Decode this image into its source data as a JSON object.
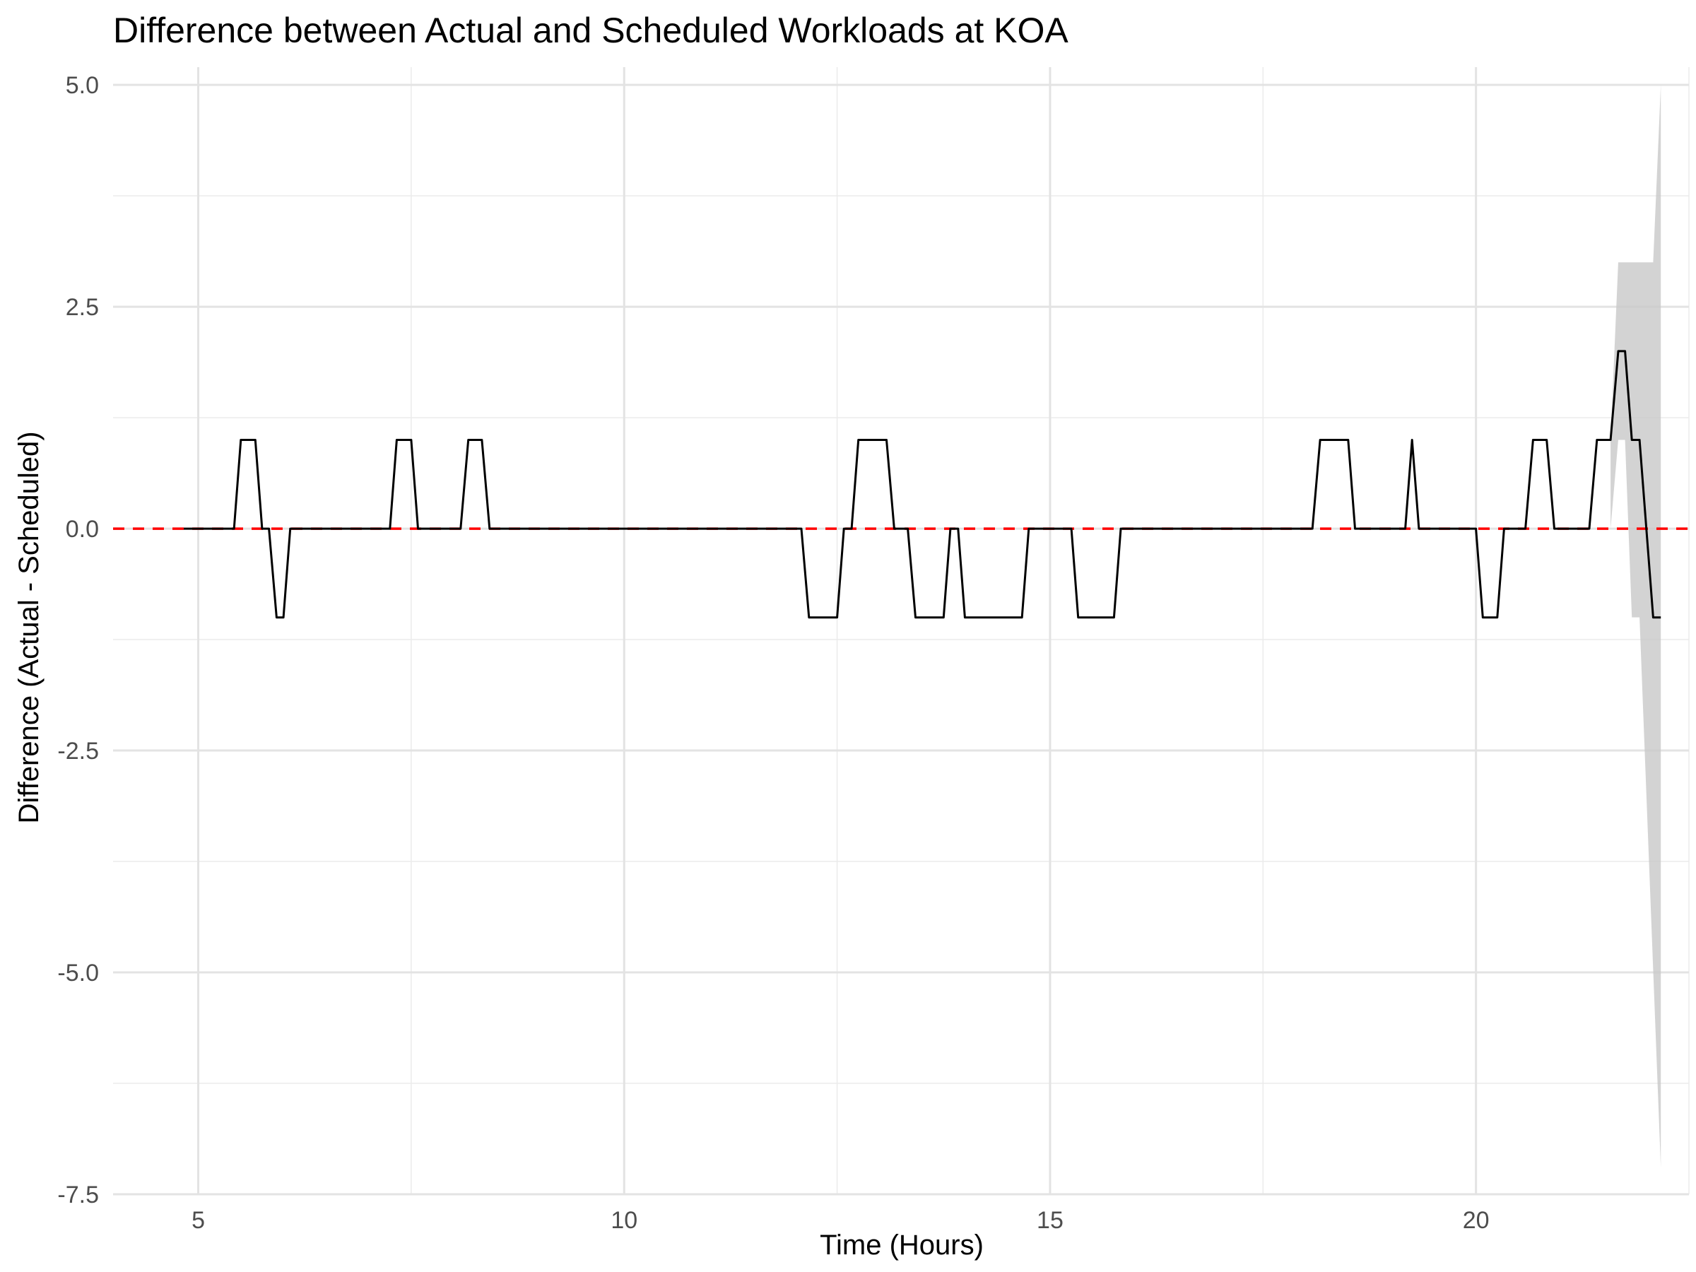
{
  "chart_data": {
    "type": "line",
    "title": "Difference between Actual and Scheduled Workloads at KOA",
    "xlabel": "Time (Hours)",
    "ylabel": "Difference (Actual - Scheduled)",
    "xlim": [
      4.0,
      22.5
    ],
    "ylim": [
      -7.5,
      5.2
    ],
    "x_ticks": [
      5,
      10,
      15,
      20
    ],
    "x_tick_labels": [
      "5",
      "10",
      "15",
      "20"
    ],
    "y_ticks": [
      5.0,
      2.5,
      0.0,
      -2.5,
      -5.0,
      -7.5
    ],
    "y_tick_labels": [
      "5.0",
      "2.5",
      "0.0",
      "-2.5",
      "-5.0",
      "-7.5"
    ],
    "grid": true,
    "reference_line": {
      "y": 0,
      "style": "dashed",
      "color": "#ff0000"
    },
    "line_color": "#000000",
    "band_color": "#c8c8c8",
    "series": [
      {
        "values": [
          [
            4.83,
            0
          ],
          [
            5.42,
            0
          ],
          [
            5.5,
            1
          ],
          [
            5.67,
            1
          ],
          [
            5.75,
            0
          ],
          [
            5.83,
            0
          ],
          [
            5.92,
            -1
          ],
          [
            6.0,
            -1
          ],
          [
            6.08,
            0
          ],
          [
            7.25,
            0
          ],
          [
            7.33,
            1
          ],
          [
            7.5,
            1
          ],
          [
            7.58,
            0
          ],
          [
            8.08,
            0
          ],
          [
            8.17,
            1
          ],
          [
            8.33,
            1
          ],
          [
            8.42,
            0
          ],
          [
            12.08,
            0
          ],
          [
            12.17,
            -1
          ],
          [
            12.5,
            -1
          ],
          [
            12.58,
            0
          ],
          [
            12.67,
            0
          ],
          [
            12.75,
            1
          ],
          [
            13.08,
            1
          ],
          [
            13.17,
            0
          ],
          [
            13.33,
            0
          ],
          [
            13.42,
            -1
          ],
          [
            13.75,
            -1
          ],
          [
            13.83,
            0
          ],
          [
            13.92,
            0
          ],
          [
            14.0,
            -1
          ],
          [
            14.67,
            -1
          ],
          [
            14.75,
            0
          ],
          [
            15.25,
            0
          ],
          [
            15.33,
            -1
          ],
          [
            15.75,
            -1
          ],
          [
            15.83,
            0
          ],
          [
            18.08,
            0
          ],
          [
            18.17,
            1
          ],
          [
            18.5,
            1
          ],
          [
            18.58,
            0
          ],
          [
            19.17,
            0
          ],
          [
            19.25,
            1
          ],
          [
            19.33,
            0
          ],
          [
            20.0,
            0
          ],
          [
            20.08,
            -1
          ],
          [
            20.25,
            -1
          ],
          [
            20.33,
            0
          ],
          [
            20.58,
            0
          ],
          [
            20.67,
            1
          ],
          [
            20.83,
            1
          ],
          [
            20.92,
            0
          ],
          [
            21.33,
            0
          ],
          [
            21.42,
            1
          ],
          [
            21.58,
            1
          ],
          [
            21.67,
            2
          ],
          [
            21.75,
            2
          ],
          [
            21.83,
            1
          ],
          [
            21.92,
            1
          ],
          [
            22.08,
            -1
          ],
          [
            22.17,
            -1
          ]
        ]
      }
    ],
    "band": {
      "upper": [
        [
          21.58,
          1
        ],
        [
          21.67,
          3
        ],
        [
          21.75,
          3
        ],
        [
          22.08,
          3
        ],
        [
          22.17,
          5.0
        ]
      ],
      "lower": [
        [
          21.58,
          0
        ],
        [
          21.67,
          1
        ],
        [
          21.75,
          1
        ],
        [
          21.83,
          -1
        ],
        [
          21.92,
          -1
        ],
        [
          22.17,
          -7.2
        ]
      ]
    }
  }
}
